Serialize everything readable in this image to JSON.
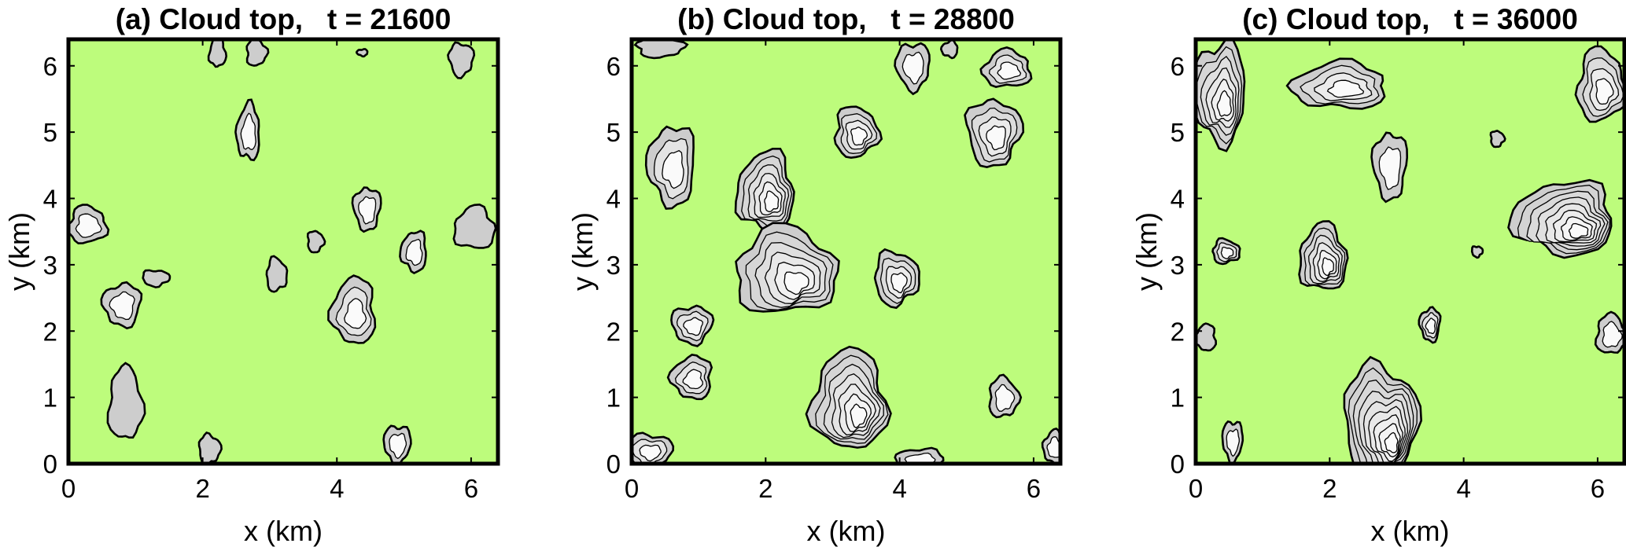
{
  "figure": {
    "background": "#ffffff",
    "cloud_free_color": "#bdfc7c",
    "cloud_fill_color": "#cfcfcf",
    "cloud_core_color": "#f3f3f3",
    "contour_color": "#000000"
  },
  "chart_data": [
    {
      "type": "contour",
      "title": "(a) Cloud top,   t = 21600",
      "xlabel": "x (km)",
      "ylabel": "y (km)",
      "xlim": [
        0,
        6.4
      ],
      "ylim": [
        0,
        6.4
      ],
      "xticks": [
        0,
        2,
        4,
        6
      ],
      "yticks": [
        0,
        1,
        2,
        3,
        4,
        5,
        6
      ],
      "clouds": [
        {
          "x": 2.22,
          "y": 6.2,
          "rx": 0.12,
          "ry": 0.22,
          "levels": 1
        },
        {
          "x": 2.8,
          "y": 6.2,
          "rx": 0.15,
          "ry": 0.2,
          "levels": 1
        },
        {
          "x": 5.85,
          "y": 6.1,
          "rx": 0.18,
          "ry": 0.25,
          "levels": 1
        },
        {
          "x": 4.38,
          "y": 6.2,
          "rx": 0.08,
          "ry": 0.05,
          "levels": 1
        },
        {
          "x": 2.68,
          "y": 5.0,
          "rx": 0.17,
          "ry": 0.42,
          "levels": 2
        },
        {
          "x": 0.28,
          "y": 3.6,
          "rx": 0.28,
          "ry": 0.28,
          "levels": 2
        },
        {
          "x": 3.68,
          "y": 3.35,
          "rx": 0.12,
          "ry": 0.16,
          "levels": 1
        },
        {
          "x": 4.45,
          "y": 3.85,
          "rx": 0.2,
          "ry": 0.32,
          "levels": 2
        },
        {
          "x": 5.15,
          "y": 3.2,
          "rx": 0.19,
          "ry": 0.3,
          "levels": 2
        },
        {
          "x": 6.05,
          "y": 3.55,
          "rx": 0.3,
          "ry": 0.32,
          "levels": 1
        },
        {
          "x": 3.1,
          "y": 2.85,
          "rx": 0.15,
          "ry": 0.25,
          "levels": 1
        },
        {
          "x": 1.3,
          "y": 2.8,
          "rx": 0.2,
          "ry": 0.12,
          "levels": 1
        },
        {
          "x": 0.8,
          "y": 2.4,
          "rx": 0.28,
          "ry": 0.32,
          "levels": 2
        },
        {
          "x": 4.25,
          "y": 2.3,
          "rx": 0.32,
          "ry": 0.5,
          "levels": 3
        },
        {
          "x": 0.85,
          "y": 0.9,
          "rx": 0.25,
          "ry": 0.55,
          "levels": 1
        },
        {
          "x": 2.1,
          "y": 0.22,
          "rx": 0.16,
          "ry": 0.22,
          "levels": 1
        },
        {
          "x": 4.9,
          "y": 0.3,
          "rx": 0.2,
          "ry": 0.28,
          "levels": 2
        }
      ]
    },
    {
      "type": "contour",
      "title": "(b) Cloud top,   t = 28800",
      "xlabel": "x (km)",
      "ylabel": "y (km)",
      "xlim": [
        0,
        6.4
      ],
      "ylim": [
        0,
        6.4
      ],
      "xticks": [
        0,
        2,
        4,
        6
      ],
      "yticks": [
        0,
        1,
        2,
        3,
        4,
        5,
        6
      ],
      "clouds": [
        {
          "x": 0.42,
          "y": 6.28,
          "rx": 0.35,
          "ry": 0.15,
          "levels": 1
        },
        {
          "x": 4.2,
          "y": 6.0,
          "rx": 0.25,
          "ry": 0.35,
          "levels": 2
        },
        {
          "x": 4.75,
          "y": 6.25,
          "rx": 0.12,
          "ry": 0.12,
          "levels": 1
        },
        {
          "x": 5.6,
          "y": 5.95,
          "rx": 0.35,
          "ry": 0.28,
          "levels": 3
        },
        {
          "x": 3.35,
          "y": 5.0,
          "rx": 0.32,
          "ry": 0.38,
          "levels": 4
        },
        {
          "x": 5.4,
          "y": 5.0,
          "rx": 0.4,
          "ry": 0.5,
          "levels": 4
        },
        {
          "x": 0.6,
          "y": 4.5,
          "rx": 0.35,
          "ry": 0.6,
          "levels": 3
        },
        {
          "x": 2.0,
          "y": 4.1,
          "rx": 0.42,
          "ry": 0.6,
          "levels": 6
        },
        {
          "x": 2.3,
          "y": 2.9,
          "rx": 0.75,
          "ry": 0.65,
          "levels": 6
        },
        {
          "x": 3.95,
          "y": 2.8,
          "rx": 0.33,
          "ry": 0.4,
          "levels": 4
        },
        {
          "x": 0.9,
          "y": 2.1,
          "rx": 0.3,
          "ry": 0.28,
          "levels": 3
        },
        {
          "x": 0.9,
          "y": 1.3,
          "rx": 0.3,
          "ry": 0.32,
          "levels": 3
        },
        {
          "x": 3.25,
          "y": 0.95,
          "rx": 0.55,
          "ry": 0.75,
          "levels": 7
        },
        {
          "x": 5.55,
          "y": 1.0,
          "rx": 0.22,
          "ry": 0.3,
          "levels": 2
        },
        {
          "x": 0.25,
          "y": 0.2,
          "rx": 0.35,
          "ry": 0.25,
          "levels": 3
        },
        {
          "x": 4.3,
          "y": 0.05,
          "rx": 0.35,
          "ry": 0.18,
          "levels": 2
        },
        {
          "x": 6.3,
          "y": 0.25,
          "rx": 0.15,
          "ry": 0.25,
          "levels": 2
        }
      ]
    },
    {
      "type": "contour",
      "title": "(c) Cloud top,   t = 36000",
      "xlabel": "x (km)",
      "ylabel": "y (km)",
      "xlim": [
        0,
        6.4
      ],
      "ylim": [
        0,
        6.4
      ],
      "xticks": [
        0,
        2,
        4,
        6
      ],
      "yticks": [
        0,
        1,
        2,
        3,
        4,
        5,
        6
      ],
      "clouds": [
        {
          "x": 0.35,
          "y": 5.6,
          "rx": 0.4,
          "ry": 0.75,
          "levels": 6
        },
        {
          "x": 2.15,
          "y": 5.7,
          "rx": 0.7,
          "ry": 0.35,
          "levels": 4
        },
        {
          "x": 6.05,
          "y": 5.7,
          "rx": 0.35,
          "ry": 0.55,
          "levels": 4
        },
        {
          "x": 4.5,
          "y": 4.9,
          "rx": 0.1,
          "ry": 0.12,
          "levels": 1
        },
        {
          "x": 2.9,
          "y": 4.5,
          "rx": 0.25,
          "ry": 0.5,
          "levels": 2
        },
        {
          "x": 5.5,
          "y": 3.7,
          "rx": 0.75,
          "ry": 0.55,
          "levels": 8
        },
        {
          "x": 1.9,
          "y": 3.1,
          "rx": 0.35,
          "ry": 0.5,
          "levels": 6
        },
        {
          "x": 0.45,
          "y": 3.2,
          "rx": 0.2,
          "ry": 0.18,
          "levels": 3
        },
        {
          "x": 4.2,
          "y": 3.2,
          "rx": 0.08,
          "ry": 0.08,
          "levels": 1
        },
        {
          "x": 3.5,
          "y": 2.1,
          "rx": 0.15,
          "ry": 0.25,
          "levels": 3
        },
        {
          "x": 0.15,
          "y": 1.9,
          "rx": 0.15,
          "ry": 0.2,
          "levels": 1
        },
        {
          "x": 6.2,
          "y": 1.95,
          "rx": 0.22,
          "ry": 0.3,
          "levels": 2
        },
        {
          "x": 2.75,
          "y": 0.65,
          "rx": 0.55,
          "ry": 0.85,
          "levels": 9
        },
        {
          "x": 0.55,
          "y": 0.35,
          "rx": 0.15,
          "ry": 0.3,
          "levels": 2
        }
      ]
    }
  ]
}
